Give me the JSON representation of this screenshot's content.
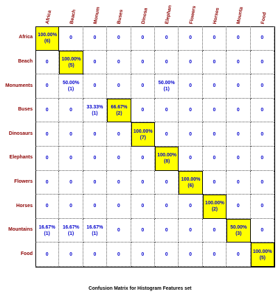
{
  "chart_data": {
    "type": "table",
    "title": "Confusion Matrix for Histogram Features set",
    "columns": [
      "Africa",
      "Beach",
      "Monum",
      "Buses",
      "Dinosa",
      "Elephan",
      "Flowers",
      "Horses",
      "Mounta",
      "Food"
    ],
    "rows": [
      "Africa",
      "Beach",
      "Monuments",
      "Buses",
      "Dinosaurs",
      "Elephants",
      "Flowers",
      "Horses",
      "Mountains",
      "Food"
    ],
    "cells": [
      [
        {
          "pct": "100.00%",
          "n": "(6)"
        },
        "0",
        "0",
        "0",
        "0",
        "0",
        "0",
        "0",
        "0",
        "0"
      ],
      [
        "0",
        {
          "pct": "100.00%",
          "n": "(5)"
        },
        "0",
        "0",
        "0",
        "0",
        "0",
        "0",
        "0",
        "0"
      ],
      [
        "0",
        {
          "pct": "50.00%",
          "n": "(1)"
        },
        "0",
        "0",
        "0",
        {
          "pct": "50.00%",
          "n": "(1)"
        },
        "0",
        "0",
        "0",
        "0"
      ],
      [
        "0",
        "0",
        {
          "pct": "33.33%",
          "n": "(1)"
        },
        {
          "pct": "66.67%",
          "n": "(2)"
        },
        "0",
        "0",
        "0",
        "0",
        "0",
        "0"
      ],
      [
        "0",
        "0",
        "0",
        "0",
        {
          "pct": "100.00%",
          "n": "(7)"
        },
        "0",
        "0",
        "0",
        "0",
        "0"
      ],
      [
        "0",
        "0",
        "0",
        "0",
        "0",
        {
          "pct": "100.00%",
          "n": "(8)"
        },
        "0",
        "0",
        "0",
        "0"
      ],
      [
        "0",
        "0",
        "0",
        "0",
        "0",
        "0",
        {
          "pct": "100.00%",
          "n": "(6)"
        },
        "0",
        "0",
        "0"
      ],
      [
        "0",
        "0",
        "0",
        "0",
        "0",
        "0",
        "0",
        {
          "pct": "100.00%",
          "n": "(2)"
        },
        "0",
        "0"
      ],
      [
        {
          "pct": "16.67%",
          "n": "(1)"
        },
        {
          "pct": "16.67%",
          "n": "(1)"
        },
        {
          "pct": "16.67%",
          "n": "(1)"
        },
        "0",
        "0",
        "0",
        "0",
        "0",
        {
          "pct": "50.00%",
          "n": "(3)"
        },
        "0"
      ],
      [
        "0",
        "0",
        "0",
        "0",
        "0",
        "0",
        "0",
        "0",
        "0",
        {
          "pct": "100.00%",
          "n": "(5)"
        }
      ]
    ],
    "highlight_color": "#ffff00",
    "label_color": "#8b0000",
    "value_color": "#0000cc"
  }
}
